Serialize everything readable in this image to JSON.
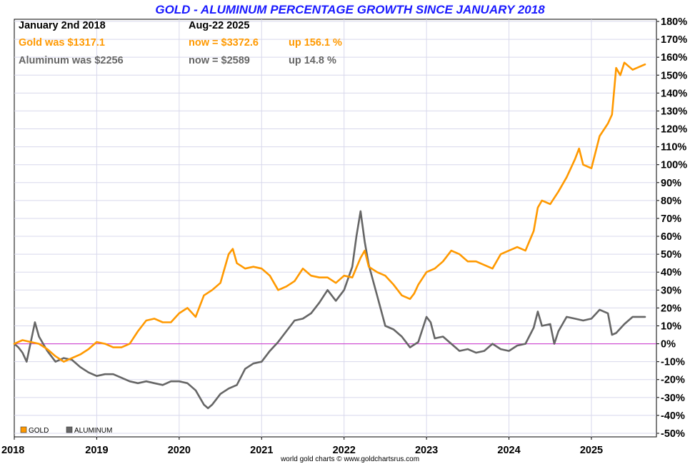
{
  "chart_data": {
    "type": "line",
    "title": "GOLD - ALUMINUM PERCENTAGE GROWTH SINCE JANUARY 2018",
    "x_tick_labels": [
      "2018",
      "2019",
      "2020",
      "2021",
      "2022",
      "2023",
      "2024",
      "2025"
    ],
    "y_tick_labels": [
      "180%",
      "170%",
      "160%",
      "150%",
      "140%",
      "130%",
      "120%",
      "110%",
      "100%",
      "90%",
      "80%",
      "70%",
      "60%",
      "50%",
      "40%",
      "30%",
      "20%",
      "10%",
      "0%",
      "-10%",
      "-20%",
      "-30%",
      "-40%",
      "-50%"
    ],
    "xlim": [
      2018.0,
      2025.65
    ],
    "ylim": [
      -50,
      180
    ],
    "grid": true,
    "zero_line_color": "#cc33cc",
    "legend_position": "bottom-left",
    "series": [
      {
        "name": "GOLD",
        "color": "#ff9900",
        "points": [
          [
            2018.0,
            0
          ],
          [
            2018.1,
            2
          ],
          [
            2018.2,
            1
          ],
          [
            2018.3,
            0
          ],
          [
            2018.4,
            -3
          ],
          [
            2018.5,
            -7
          ],
          [
            2018.6,
            -10
          ],
          [
            2018.7,
            -8
          ],
          [
            2018.8,
            -6
          ],
          [
            2018.9,
            -3
          ],
          [
            2019.0,
            1
          ],
          [
            2019.1,
            0
          ],
          [
            2019.2,
            -2
          ],
          [
            2019.3,
            -2
          ],
          [
            2019.4,
            0
          ],
          [
            2019.5,
            7
          ],
          [
            2019.6,
            13
          ],
          [
            2019.7,
            14
          ],
          [
            2019.8,
            12
          ],
          [
            2019.9,
            12
          ],
          [
            2020.0,
            17
          ],
          [
            2020.1,
            20
          ],
          [
            2020.2,
            15
          ],
          [
            2020.3,
            27
          ],
          [
            2020.4,
            30
          ],
          [
            2020.5,
            34
          ],
          [
            2020.6,
            50
          ],
          [
            2020.65,
            53
          ],
          [
            2020.7,
            45
          ],
          [
            2020.8,
            42
          ],
          [
            2020.9,
            43
          ],
          [
            2021.0,
            42
          ],
          [
            2021.1,
            38
          ],
          [
            2021.2,
            30
          ],
          [
            2021.3,
            32
          ],
          [
            2021.4,
            35
          ],
          [
            2021.5,
            42
          ],
          [
            2021.6,
            38
          ],
          [
            2021.7,
            37
          ],
          [
            2021.8,
            37
          ],
          [
            2021.9,
            34
          ],
          [
            2022.0,
            38
          ],
          [
            2022.1,
            37
          ],
          [
            2022.2,
            48
          ],
          [
            2022.25,
            52
          ],
          [
            2022.3,
            43
          ],
          [
            2022.4,
            40
          ],
          [
            2022.5,
            38
          ],
          [
            2022.6,
            33
          ],
          [
            2022.7,
            27
          ],
          [
            2022.8,
            25
          ],
          [
            2022.85,
            28
          ],
          [
            2022.9,
            33
          ],
          [
            2023.0,
            40
          ],
          [
            2023.1,
            42
          ],
          [
            2023.2,
            46
          ],
          [
            2023.3,
            52
          ],
          [
            2023.4,
            50
          ],
          [
            2023.5,
            46
          ],
          [
            2023.6,
            46
          ],
          [
            2023.7,
            44
          ],
          [
            2023.8,
            42
          ],
          [
            2023.9,
            50
          ],
          [
            2024.0,
            52
          ],
          [
            2024.1,
            54
          ],
          [
            2024.2,
            52
          ],
          [
            2024.3,
            63
          ],
          [
            2024.35,
            76
          ],
          [
            2024.4,
            80
          ],
          [
            2024.5,
            78
          ],
          [
            2024.6,
            85
          ],
          [
            2024.7,
            93
          ],
          [
            2024.8,
            103
          ],
          [
            2024.85,
            109
          ],
          [
            2024.9,
            100
          ],
          [
            2025.0,
            98
          ],
          [
            2025.1,
            116
          ],
          [
            2025.2,
            123
          ],
          [
            2025.25,
            128
          ],
          [
            2025.3,
            154
          ],
          [
            2025.35,
            150
          ],
          [
            2025.4,
            157
          ],
          [
            2025.5,
            153
          ],
          [
            2025.6,
            155
          ],
          [
            2025.65,
            156
          ]
        ]
      },
      {
        "name": "ALUMINUM",
        "color": "#666666",
        "points": [
          [
            2018.0,
            0
          ],
          [
            2018.05,
            -2
          ],
          [
            2018.1,
            -5
          ],
          [
            2018.15,
            -10
          ],
          [
            2018.2,
            1
          ],
          [
            2018.25,
            12
          ],
          [
            2018.3,
            4
          ],
          [
            2018.4,
            -4
          ],
          [
            2018.5,
            -10
          ],
          [
            2018.6,
            -8
          ],
          [
            2018.7,
            -9
          ],
          [
            2018.8,
            -13
          ],
          [
            2018.9,
            -16
          ],
          [
            2019.0,
            -18
          ],
          [
            2019.1,
            -17
          ],
          [
            2019.2,
            -17
          ],
          [
            2019.3,
            -19
          ],
          [
            2019.4,
            -21
          ],
          [
            2019.5,
            -22
          ],
          [
            2019.6,
            -21
          ],
          [
            2019.7,
            -22
          ],
          [
            2019.8,
            -23
          ],
          [
            2019.9,
            -21
          ],
          [
            2020.0,
            -21
          ],
          [
            2020.1,
            -22
          ],
          [
            2020.2,
            -26
          ],
          [
            2020.3,
            -34
          ],
          [
            2020.35,
            -36
          ],
          [
            2020.4,
            -34
          ],
          [
            2020.5,
            -28
          ],
          [
            2020.6,
            -25
          ],
          [
            2020.7,
            -23
          ],
          [
            2020.8,
            -14
          ],
          [
            2020.9,
            -11
          ],
          [
            2021.0,
            -10
          ],
          [
            2021.1,
            -4
          ],
          [
            2021.2,
            1
          ],
          [
            2021.3,
            7
          ],
          [
            2021.4,
            13
          ],
          [
            2021.5,
            14
          ],
          [
            2021.6,
            17
          ],
          [
            2021.7,
            23
          ],
          [
            2021.8,
            30
          ],
          [
            2021.9,
            24
          ],
          [
            2022.0,
            30
          ],
          [
            2022.1,
            43
          ],
          [
            2022.15,
            60
          ],
          [
            2022.2,
            74
          ],
          [
            2022.25,
            57
          ],
          [
            2022.3,
            44
          ],
          [
            2022.4,
            27
          ],
          [
            2022.5,
            10
          ],
          [
            2022.6,
            8
          ],
          [
            2022.7,
            4
          ],
          [
            2022.8,
            -2
          ],
          [
            2022.9,
            1
          ],
          [
            2023.0,
            15
          ],
          [
            2023.05,
            12
          ],
          [
            2023.1,
            3
          ],
          [
            2023.2,
            4
          ],
          [
            2023.3,
            0
          ],
          [
            2023.4,
            -4
          ],
          [
            2023.5,
            -3
          ],
          [
            2023.6,
            -5
          ],
          [
            2023.7,
            -4
          ],
          [
            2023.8,
            0
          ],
          [
            2023.9,
            -3
          ],
          [
            2024.0,
            -4
          ],
          [
            2024.1,
            -1
          ],
          [
            2024.2,
            0
          ],
          [
            2024.3,
            9
          ],
          [
            2024.35,
            18
          ],
          [
            2024.4,
            10
          ],
          [
            2024.5,
            11
          ],
          [
            2024.55,
            0
          ],
          [
            2024.6,
            7
          ],
          [
            2024.7,
            15
          ],
          [
            2024.8,
            14
          ],
          [
            2024.9,
            13
          ],
          [
            2025.0,
            14
          ],
          [
            2025.1,
            19
          ],
          [
            2025.2,
            17
          ],
          [
            2025.25,
            5
          ],
          [
            2025.3,
            6
          ],
          [
            2025.4,
            11
          ],
          [
            2025.5,
            15
          ],
          [
            2025.6,
            15
          ],
          [
            2025.65,
            15
          ]
        ]
      }
    ]
  },
  "header": {
    "col1_title": "January 2nd 2018",
    "col2_title": "Aug-22  2025",
    "gold_was": "Gold was $1317.1",
    "gold_now": "now = $3372.6",
    "gold_up": "up 156.1 %",
    "alu_was": "Aluminum was $2256",
    "alu_now": "now = $2589",
    "alu_up": "up 14.8 %"
  },
  "legend": {
    "gold_label": "GOLD",
    "alu_label": "ALUMINUM"
  },
  "credit": "world gold charts © www.goldchartsrus.com",
  "colors": {
    "gold": "#ff9900",
    "aluminum": "#666666",
    "title": "#1a1aff",
    "grid": "#d8d8ec",
    "zero_line": "#cc33cc"
  }
}
